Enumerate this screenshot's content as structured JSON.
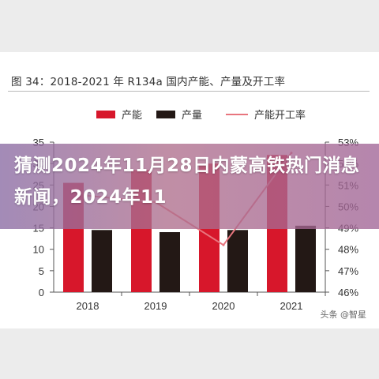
{
  "figure_title": "图 34：2018-2021 年 R134a 国内产能、产量及开工率",
  "headline": "猜测2024年11月28日内蒙高铁热门消息新闻，2024年11",
  "watermark": "头条 @智星",
  "colors": {
    "capacity": "#d7172b",
    "output": "#231815",
    "utilization": "#e8757e",
    "overlay": "#a06e96"
  },
  "chart_data": {
    "type": "bar",
    "title": "图 34：2018-2021 年 R134a 国内产能、产量及开工率",
    "categories": [
      "2018",
      "2019",
      "2020",
      "2021"
    ],
    "series": [
      {
        "name": "产能",
        "kind": "bar",
        "axis": "left",
        "values": [
          25.5,
          28.5,
          30,
          32
        ]
      },
      {
        "name": "产量",
        "kind": "bar",
        "axis": "left",
        "values": [
          14.5,
          14,
          14.5,
          15.5
        ]
      },
      {
        "name": "产能开工率",
        "kind": "line",
        "axis": "right",
        "values": [
          50.5,
          50.2,
          48.2,
          52.5
        ]
      }
    ],
    "ylim_left": [
      0,
      35
    ],
    "yticks_left": [
      "0",
      "5",
      "10",
      "15",
      "20",
      "25",
      "30",
      "35"
    ],
    "ylim_right": [
      46,
      53
    ],
    "yticks_right": [
      "46%",
      "47%",
      "48%",
      "49%",
      "50%",
      "51%",
      "52%",
      "53%"
    ],
    "legend": [
      "产能",
      "产量",
      "产能开工率"
    ],
    "legend_position": "top",
    "grid": false
  }
}
